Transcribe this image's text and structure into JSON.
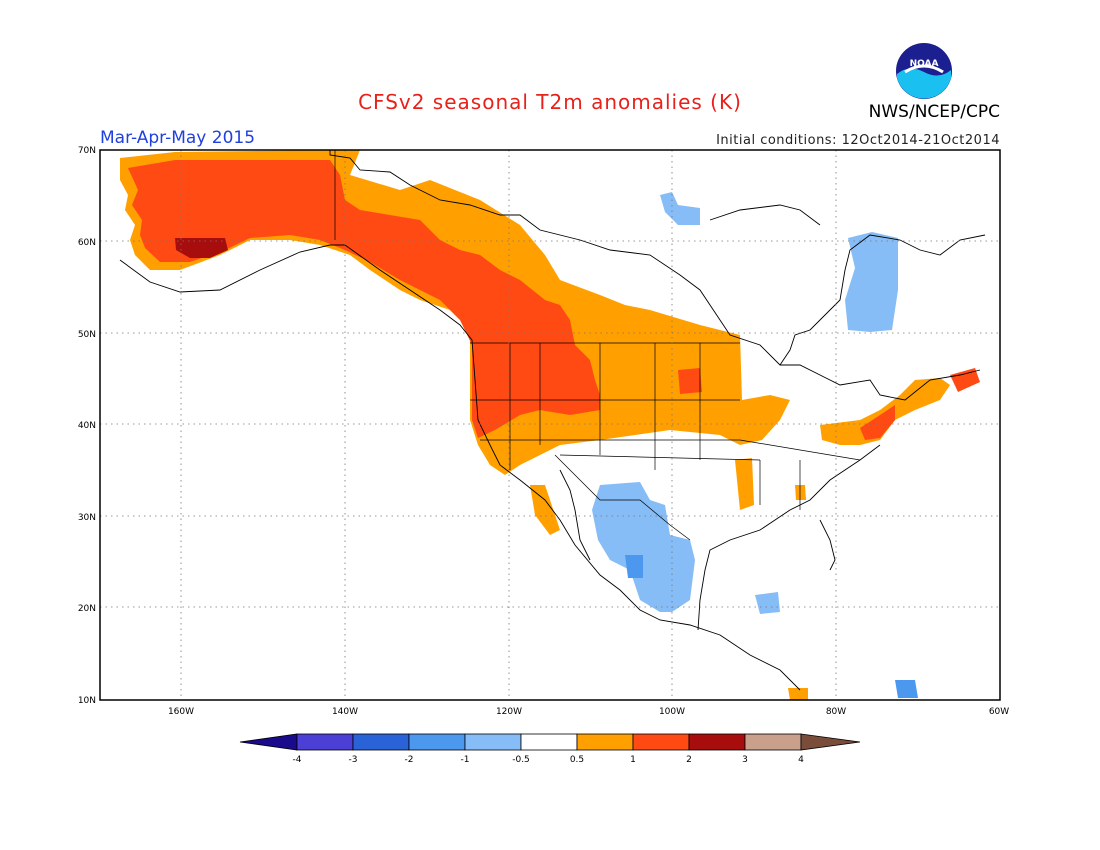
{
  "header": {
    "title": "CFSv2 seasonal T2m anomalies (K)",
    "organization": "NWS/NCEP/CPC",
    "logo_text": "NOAA",
    "period": "Mar-Apr-May 2015",
    "initial_conditions": "Initial conditions: 12Oct2014-21Oct2014"
  },
  "map": {
    "lat_labels": [
      "70N",
      "60N",
      "50N",
      "40N",
      "30N",
      "20N",
      "10N"
    ],
    "lon_labels": [
      "160W",
      "140W",
      "120W",
      "100W",
      "80W",
      "60W"
    ],
    "gridlines": "dotted"
  },
  "legend": {
    "tick_labels": [
      "-4",
      "-3",
      "-2",
      "-1",
      "-0.5",
      "0.5",
      "1",
      "2",
      "3",
      "4"
    ],
    "colors": [
      "#1a0a8c",
      "#4b3fd6",
      "#2a62d8",
      "#4c98ee",
      "#86bdf6",
      "#ffffff",
      "#ffa000",
      "#ff4a14",
      "#a80d0d",
      "#c9a08c",
      "#7a4c3a"
    ]
  },
  "colors": {
    "title": "#e8211a",
    "period": "#1f3fe0",
    "warm_light": "#ffa000",
    "warm": "#ff4a14",
    "warm_dark": "#a80d0d",
    "cool": "#86bdf6",
    "cool_mid": "#4c98ee"
  }
}
